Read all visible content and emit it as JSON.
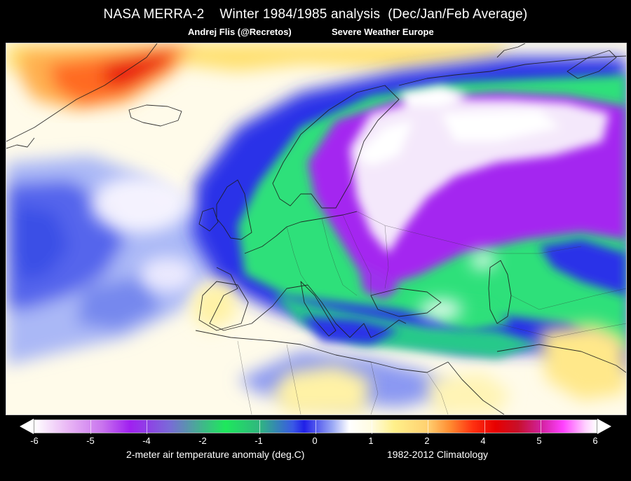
{
  "header": {
    "title": "NASA MERRA-2    Winter 1984/1985 analysis  (Dec/Jan/Feb Average)",
    "author": "Andrej Flis (@Recretos)",
    "org": "Severe Weather Europe"
  },
  "colorbar": {
    "ticks": [
      "-6",
      "-5",
      "-4",
      "-2",
      "-1",
      "0",
      "1",
      "2",
      "4",
      "5",
      "6"
    ],
    "label": "2-meter air temperature anomaly (deg.C)",
    "climatology": "1982-2012 Climatology"
  },
  "colors": {
    "background": "#000000",
    "strong_cold": "#ffffff",
    "cold_purple": "#a020f0",
    "cold_green": "#1ee85c",
    "cold_blue": "#2020e8",
    "neutral": "#ffffff",
    "warm_yellow": "#fff08a",
    "warm_red": "#e80000",
    "strong_warm": "#ff40ff"
  }
}
